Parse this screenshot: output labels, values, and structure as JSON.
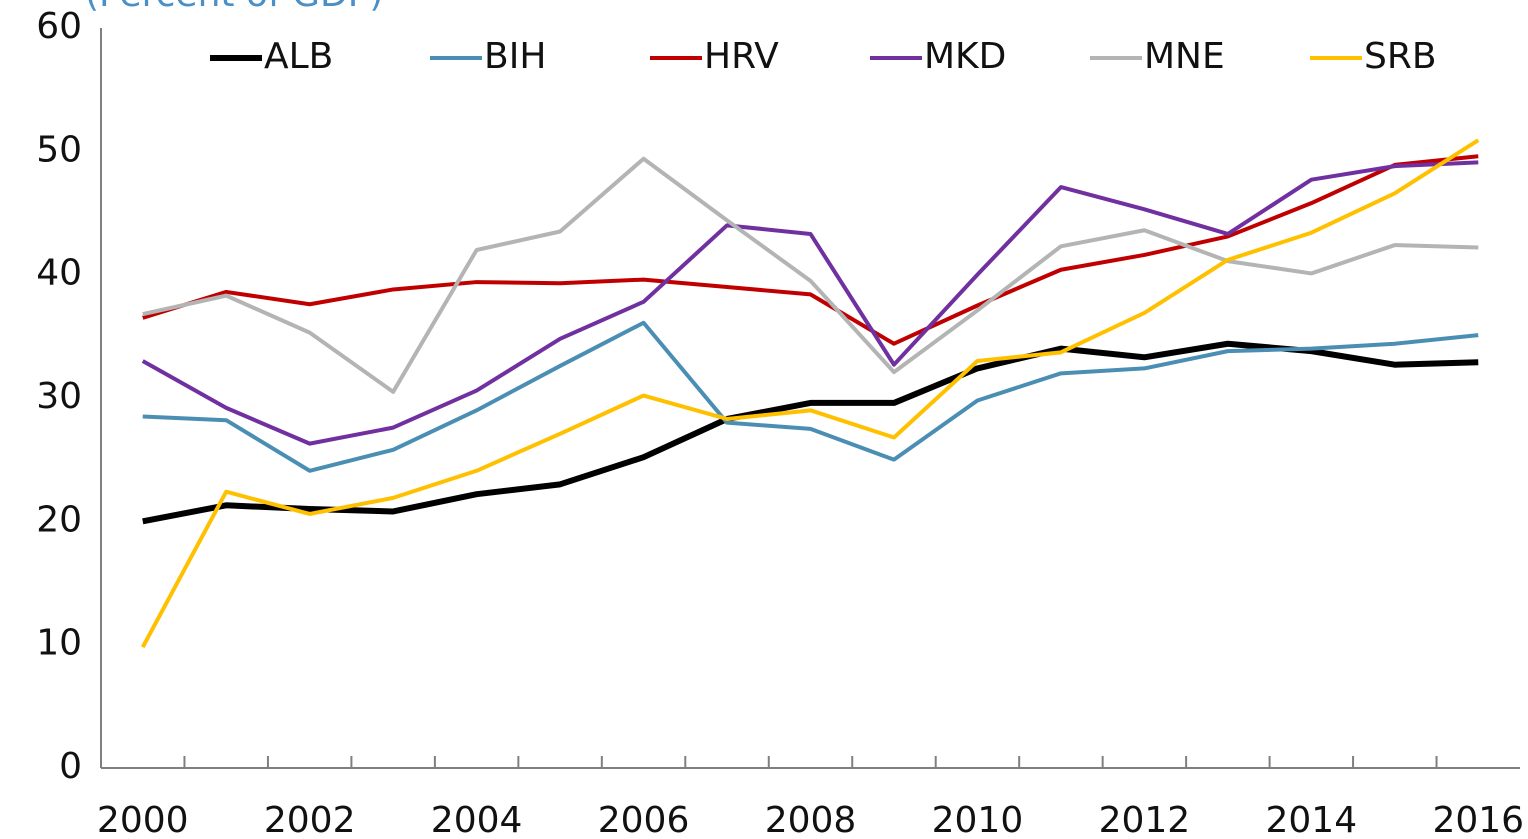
{
  "chart_data": {
    "type": "line",
    "subtitle": "(Percent of GDP)",
    "categories": [
      "2000",
      null,
      "2002",
      null,
      "2004",
      null,
      "2006",
      null,
      "2008",
      null,
      "2010",
      null,
      "2012",
      null,
      "2014",
      null,
      "2016"
    ],
    "series": [
      {
        "name": "ALB",
        "color": "#000000",
        "values": [
          20.0,
          21.3,
          21.0,
          20.8,
          22.2,
          23.0,
          25.2,
          28.3,
          29.6,
          29.6,
          32.4,
          34.0,
          33.3,
          34.4,
          33.8,
          32.7,
          32.9
        ]
      },
      {
        "name": "BIH",
        "color": "#4a8fb3",
        "values": [
          28.5,
          28.2,
          24.1,
          25.8,
          29.0,
          32.6,
          36.1,
          28.0,
          27.5,
          25.0,
          29.8,
          32.0,
          32.4,
          33.8,
          34.0,
          34.4,
          35.1
        ]
      },
      {
        "name": "HRV",
        "color": "#c00000",
        "values": [
          36.5,
          38.6,
          37.6,
          38.8,
          39.4,
          39.3,
          39.6,
          39.0,
          38.4,
          34.4,
          37.5,
          40.4,
          41.6,
          43.1,
          45.8,
          48.9,
          49.6
        ]
      },
      {
        "name": "MKD",
        "color": "#7030a0",
        "values": [
          33.0,
          29.2,
          26.3,
          27.6,
          30.6,
          34.8,
          37.8,
          44.0,
          43.3,
          32.7,
          40.0,
          47.1,
          45.3,
          43.3,
          47.7,
          48.8,
          49.1
        ]
      },
      {
        "name": "MNE",
        "color": "#b4b4b4",
        "values": [
          36.8,
          38.3,
          35.3,
          30.5,
          42.0,
          43.5,
          49.4,
          44.4,
          39.5,
          32.1,
          37.1,
          42.3,
          43.6,
          41.1,
          40.1,
          42.4,
          42.2
        ]
      },
      {
        "name": "SRB",
        "color": "#ffc000",
        "values": [
          9.8,
          22.4,
          20.6,
          21.9,
          24.1,
          27.1,
          30.2,
          28.3,
          29.0,
          26.8,
          33.0,
          33.7,
          36.9,
          41.2,
          43.4,
          46.6,
          50.9
        ]
      }
    ],
    "ylim": [
      0,
      60
    ],
    "yticks": [
      0,
      10,
      20,
      30,
      40,
      50,
      60
    ],
    "grid": false,
    "legend": "top"
  }
}
